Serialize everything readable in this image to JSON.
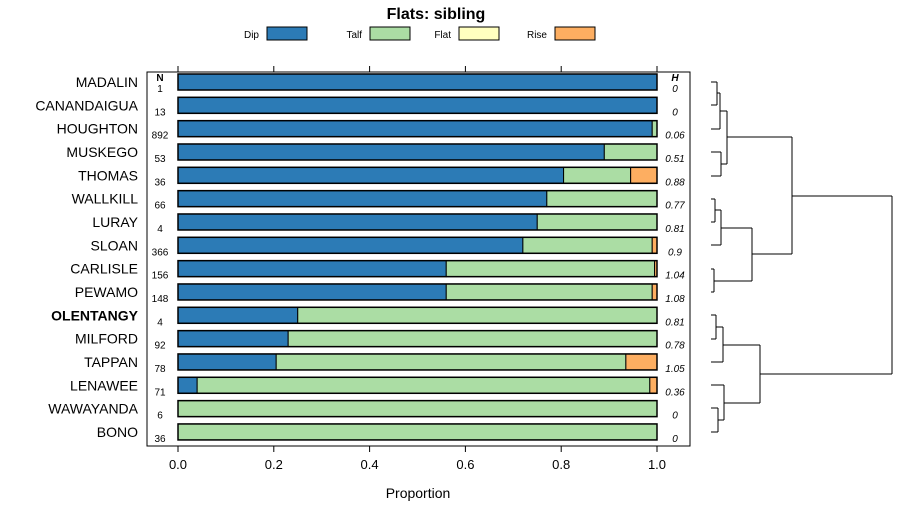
{
  "chart_data": {
    "type": "bar",
    "stacked": true,
    "orientation": "horizontal",
    "title": "Flats: sibling",
    "xlabel": "Proportion",
    "xlim": [
      0,
      1
    ],
    "xticks": [
      "0.0",
      "0.2",
      "0.4",
      "0.6",
      "0.8",
      "1.0"
    ],
    "n_label": "N",
    "h_label": "H",
    "legend": [
      {
        "name": "Dip",
        "color": "#2c7bb6"
      },
      {
        "name": "Talf",
        "color": "#abdda4"
      },
      {
        "name": "Flat",
        "color": "#ffffbf"
      },
      {
        "name": "Rise",
        "color": "#fdae61"
      }
    ],
    "bold_category": "OLENTANGY",
    "rows": [
      {
        "name": "MADALIN",
        "n": "1",
        "h": "0",
        "values": [
          1.0,
          0.0,
          0.0,
          0.0
        ]
      },
      {
        "name": "CANANDAIGUA",
        "n": "13",
        "h": "0",
        "values": [
          1.0,
          0.0,
          0.0,
          0.0
        ]
      },
      {
        "name": "HOUGHTON",
        "n": "892",
        "h": "0.06",
        "values": [
          0.99,
          0.01,
          0.0,
          0.0
        ]
      },
      {
        "name": "MUSKEGO",
        "n": "53",
        "h": "0.51",
        "values": [
          0.89,
          0.11,
          0.0,
          0.0
        ]
      },
      {
        "name": "THOMAS",
        "n": "36",
        "h": "0.88",
        "values": [
          0.805,
          0.14,
          0.0,
          0.055
        ]
      },
      {
        "name": "WALLKILL",
        "n": "66",
        "h": "0.77",
        "values": [
          0.77,
          0.23,
          0.0,
          0.0
        ]
      },
      {
        "name": "LURAY",
        "n": "4",
        "h": "0.81",
        "values": [
          0.75,
          0.25,
          0.0,
          0.0
        ]
      },
      {
        "name": "SLOAN",
        "n": "366",
        "h": "0.9",
        "values": [
          0.72,
          0.27,
          0.0,
          0.01
        ]
      },
      {
        "name": "CARLISLE",
        "n": "156",
        "h": "1.04",
        "values": [
          0.56,
          0.435,
          0.0,
          0.005
        ]
      },
      {
        "name": "PEWAMO",
        "n": "148",
        "h": "1.08",
        "values": [
          0.56,
          0.43,
          0.0,
          0.01
        ]
      },
      {
        "name": "OLENTANGY",
        "n": "4",
        "h": "0.81",
        "values": [
          0.25,
          0.75,
          0.0,
          0.0
        ]
      },
      {
        "name": "MILFORD",
        "n": "92",
        "h": "0.78",
        "values": [
          0.23,
          0.77,
          0.0,
          0.0
        ]
      },
      {
        "name": "TAPPAN",
        "n": "78",
        "h": "1.05",
        "values": [
          0.205,
          0.73,
          0.0,
          0.065
        ]
      },
      {
        "name": "LENAWEE",
        "n": "71",
        "h": "0.36",
        "values": [
          0.04,
          0.945,
          0.0,
          0.015
        ]
      },
      {
        "name": "WAWAYANDA",
        "n": "6",
        "h": "0",
        "values": [
          0.0,
          1.0,
          0.0,
          0.0
        ]
      },
      {
        "name": "BONO",
        "n": "36",
        "h": "0",
        "values": [
          0.0,
          1.0,
          0.0,
          0.0
        ]
      }
    ]
  }
}
